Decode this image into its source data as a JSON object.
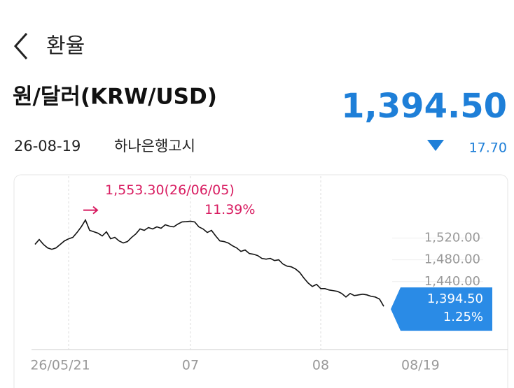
{
  "header": {
    "title": "환율"
  },
  "quote": {
    "pair": "원/달러(KRW/USD)",
    "price": "1,394.50",
    "date": "26-08-19",
    "source": "하나은행고시",
    "change": "17.70"
  },
  "chart_data": {
    "type": "line",
    "categories": [
      null,
      null,
      null,
      null,
      null,
      null,
      null,
      null,
      "26/05/21",
      null,
      null,
      null,
      null,
      null,
      null,
      null,
      null,
      null,
      null,
      null,
      null,
      null,
      null,
      null,
      null,
      null,
      null,
      null,
      null,
      null,
      null,
      null,
      null,
      null,
      null,
      null,
      null,
      "07",
      null,
      null,
      null,
      null,
      null,
      null,
      null,
      null,
      null,
      null,
      null,
      null,
      null,
      null,
      null,
      null,
      null,
      null,
      null,
      null,
      null,
      null,
      null,
      null,
      null,
      null,
      null,
      null,
      null,
      null,
      "08",
      null,
      null,
      null,
      null,
      null,
      null,
      null,
      null,
      null,
      null,
      null,
      null,
      null,
      null,
      "08/19"
    ],
    "series": [
      {
        "color": "#111111",
        "values": [
          1508.4,
          1517.4,
          1508.4,
          1501.9,
          1499.4,
          1501.9,
          1508.4,
          1514.8,
          1518.7,
          1521.3,
          1530.3,
          1540.6,
          1553.3,
          1534.2,
          1531.6,
          1529.0,
          1523.9,
          1531.6,
          1518.7,
          1521.3,
          1514.8,
          1511.0,
          1513.6,
          1521.3,
          1527.7,
          1536.8,
          1534.2,
          1539.4,
          1536.8,
          1540.6,
          1538.1,
          1544.5,
          1541.9,
          1540.6,
          1545.8,
          1549.7,
          1550.2,
          1551.0,
          1549.7,
          1540.6,
          1536.8,
          1530.3,
          1534.2,
          1523.9,
          1514.8,
          1513.6,
          1511.0,
          1505.8,
          1501.9,
          1495.5,
          1498.1,
          1491.6,
          1490.3,
          1487.8,
          1482.6,
          1481.3,
          1482.6,
          1478.7,
          1480.0,
          1472.3,
          1468.4,
          1467.1,
          1463.2,
          1456.8,
          1446.5,
          1437.4,
          1431.0,
          1434.9,
          1427.1,
          1427.1,
          1424.5,
          1423.3,
          1422.0,
          1418.1,
          1411.6,
          1418.1,
          1414.2,
          1415.5,
          1416.8,
          1415.5,
          1412.9,
          1411.6,
          1407.7,
          1394.5
        ]
      }
    ],
    "ylim": [
      1315,
      1630
    ],
    "yticks": [
      {
        "value": 1440,
        "label": "1,440.00"
      },
      {
        "value": 1480,
        "label": "1,480.00"
      },
      {
        "value": 1520,
        "label": "1,520.00"
      }
    ],
    "max_annotation": {
      "label": "1,553.30(26/06/05)",
      "change": "11.39%",
      "color": "#d81b60"
    },
    "last_annotation": {
      "label": "1,394.50",
      "change": "1.25%",
      "color": "#2a8be6"
    }
  }
}
